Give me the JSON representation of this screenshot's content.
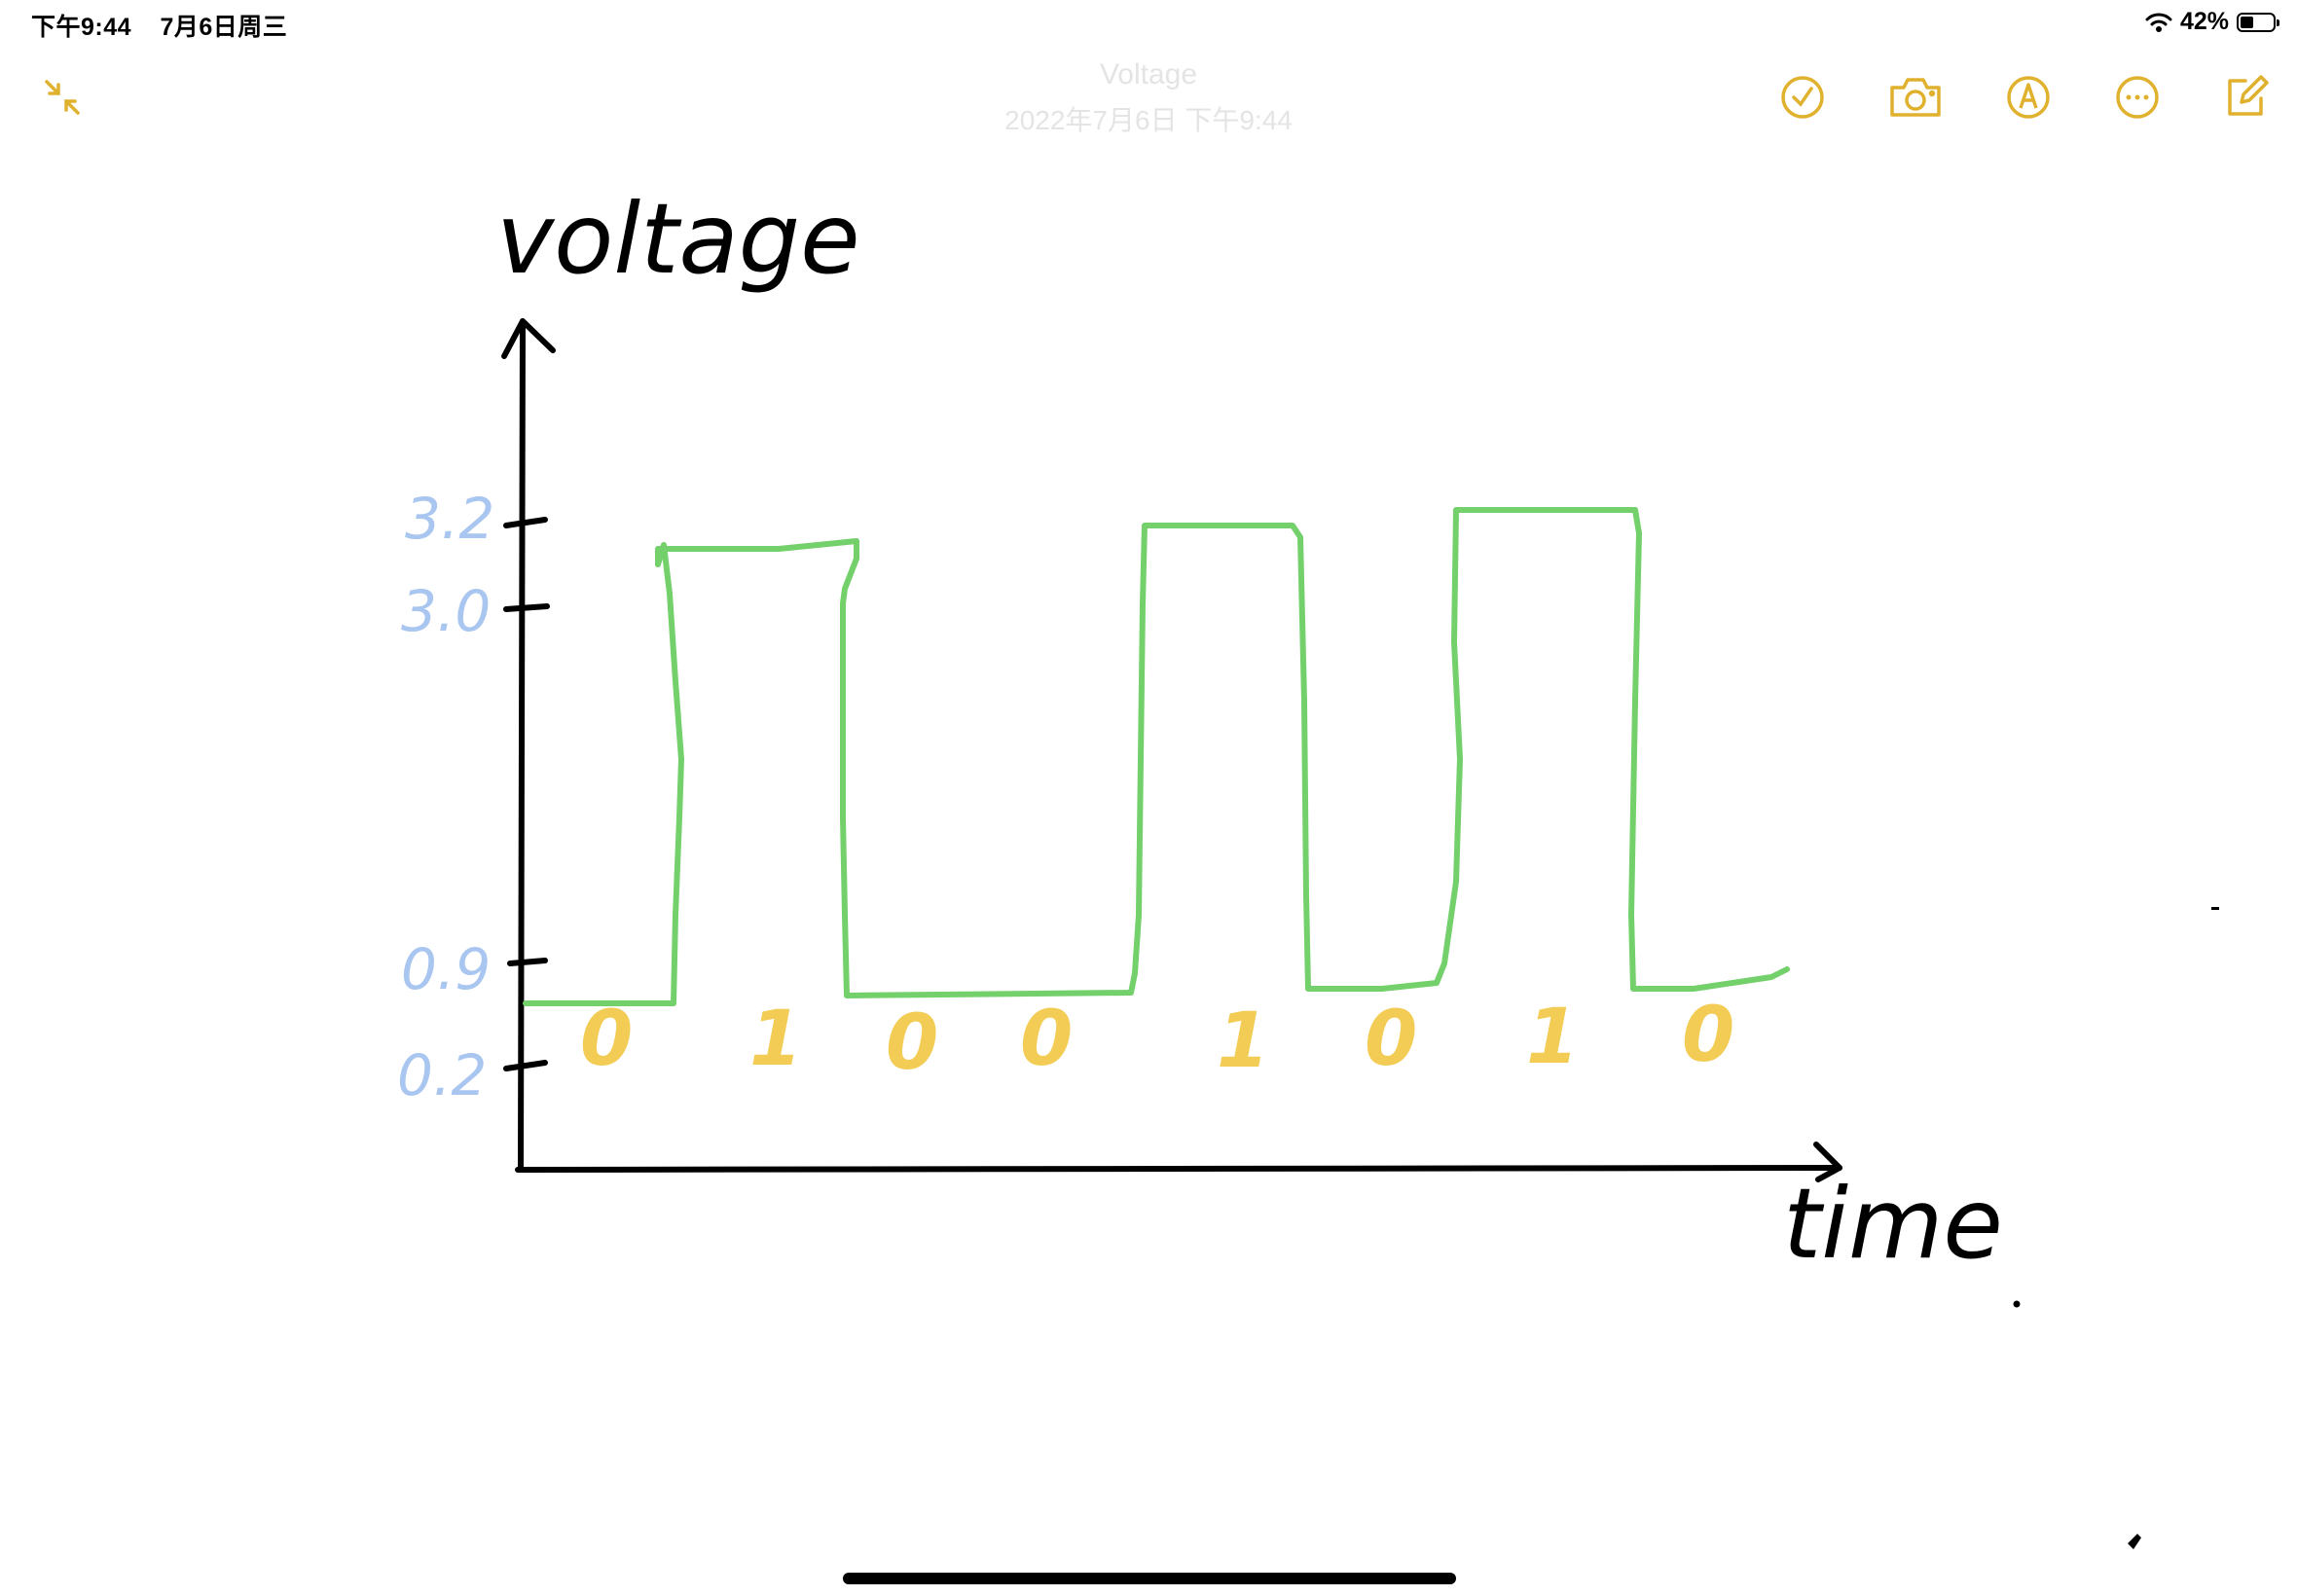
{
  "status_bar": {
    "time": "下午9:44",
    "date": "7月6日周三",
    "battery": "42%",
    "battery_level": 0.42
  },
  "note": {
    "title": "Voltage",
    "date": "2022年7月6日 下午9:44"
  },
  "toolbar": {
    "icons": [
      "collapse-icon",
      "checklist-icon",
      "camera-icon",
      "markup-pen-icon",
      "more-icon",
      "compose-icon"
    ],
    "accent_color": "#e0b12e"
  },
  "drawing": {
    "y_axis_label": "voltage",
    "x_axis_label": "time",
    "y_tick_labels": [
      "3.2",
      "3.0",
      "0.9",
      "0.2"
    ],
    "bit_labels": [
      "0",
      "1",
      "0",
      "0",
      "1",
      "0",
      "1",
      "0"
    ],
    "colors": {
      "signal": "#73d06b",
      "ticks": "#a9c6f0",
      "bits": "#f2cc55",
      "axes": "#000000"
    }
  }
}
